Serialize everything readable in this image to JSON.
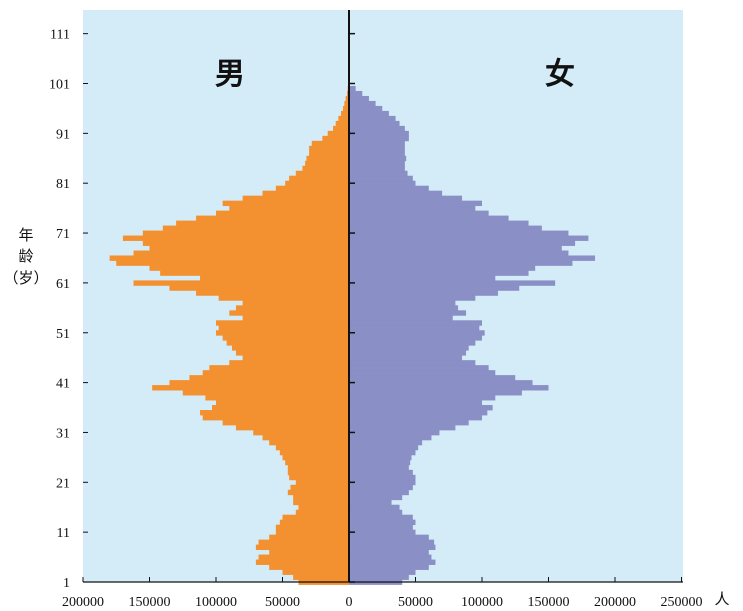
{
  "chart_data": {
    "type": "bar",
    "orientation": "horizontal-pyramid",
    "side_labels": {
      "left": "男",
      "right": "女"
    },
    "ylabel": "年龄（岁）",
    "ylabel_chars": [
      "年",
      "龄",
      "（岁）"
    ],
    "xunit": "人",
    "xlim_left": [
      200000,
      0
    ],
    "xlim_right": [
      0,
      250000
    ],
    "ylim": [
      1,
      115
    ],
    "x_ticks": [
      "200000",
      "150000",
      "100000",
      "50000",
      "0",
      "50000",
      "100000",
      "150000",
      "200000",
      "250000"
    ],
    "y_ticks": [
      "1",
      "11",
      "21",
      "31",
      "41",
      "51",
      "61",
      "71",
      "81",
      "91",
      "101",
      "111"
    ],
    "colors": {
      "background": "#d4ecf7",
      "male": "#f39131",
      "female": "#8a8fc6",
      "axis": "#111111"
    },
    "age_start": 1,
    "series": [
      {
        "name": "男",
        "values": [
          38000,
          42000,
          50000,
          60000,
          70000,
          68000,
          60000,
          70000,
          68000,
          60000,
          55000,
          55000,
          52000,
          50000,
          40000,
          38000,
          42000,
          42000,
          46000,
          44000,
          40000,
          45000,
          46000,
          46000,
          48000,
          50000,
          52000,
          55000,
          60000,
          65000,
          72000,
          85000,
          95000,
          110000,
          112000,
          103000,
          100000,
          108000,
          125000,
          148000,
          135000,
          120000,
          110000,
          105000,
          90000,
          80000,
          85000,
          88000,
          92000,
          95000,
          100000,
          98000,
          100000,
          80000,
          90000,
          85000,
          80000,
          98000,
          115000,
          135000,
          162000,
          112000,
          142000,
          150000,
          175000,
          180000,
          162000,
          150000,
          155000,
          170000,
          155000,
          140000,
          130000,
          115000,
          100000,
          90000,
          95000,
          80000,
          65000,
          55000,
          48000,
          45000,
          40000,
          35000,
          33000,
          32000,
          30000,
          30000,
          28000,
          20000,
          16000,
          12000,
          10000,
          8000,
          6000,
          4500,
          3500,
          2500,
          1500,
          1000
        ]
      },
      {
        "name": "女",
        "values": [
          40000,
          45000,
          50000,
          60000,
          65000,
          62000,
          60000,
          65000,
          64000,
          60000,
          50000,
          48000,
          50000,
          48000,
          40000,
          38000,
          32000,
          40000,
          45000,
          48000,
          50000,
          50000,
          48000,
          45000,
          46000,
          47000,
          50000,
          52000,
          55000,
          62000,
          68000,
          80000,
          90000,
          100000,
          104000,
          108000,
          100000,
          110000,
          130000,
          150000,
          138000,
          125000,
          110000,
          105000,
          95000,
          85000,
          88000,
          90000,
          95000,
          100000,
          102000,
          98000,
          100000,
          78000,
          88000,
          82000,
          80000,
          95000,
          112000,
          128000,
          155000,
          110000,
          135000,
          140000,
          168000,
          185000,
          165000,
          160000,
          170000,
          180000,
          165000,
          145000,
          135000,
          120000,
          105000,
          95000,
          100000,
          85000,
          70000,
          60000,
          50000,
          48000,
          44000,
          42000,
          42000,
          43000,
          42000,
          42000,
          42000,
          45000,
          45000,
          42000,
          38000,
          35000,
          30000,
          25000,
          20000,
          15000,
          10000,
          5000
        ]
      }
    ]
  }
}
